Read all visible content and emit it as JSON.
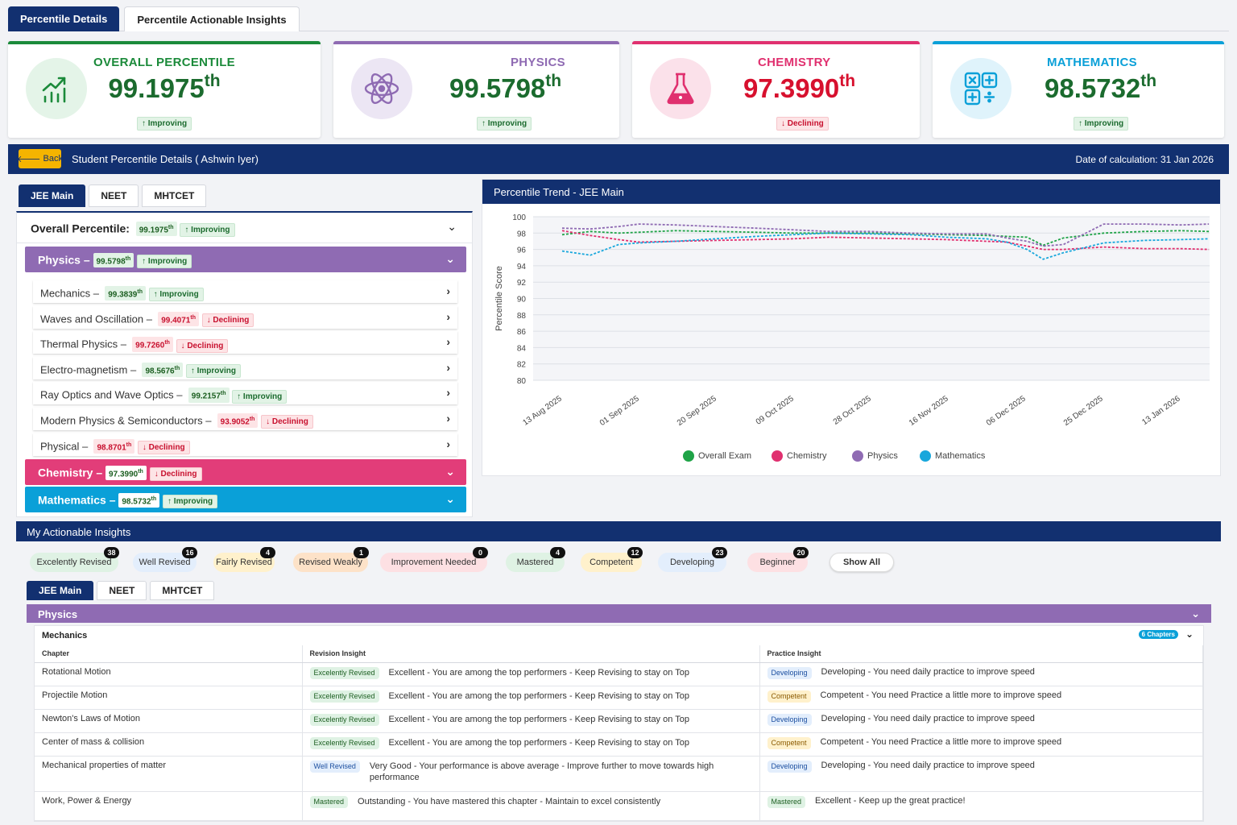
{
  "top_tabs": [
    "Percentile Details",
    "Percentile Actionable Insights"
  ],
  "cards": [
    {
      "title": "OVERALL PERCENTILE",
      "value": "99.1975",
      "suffix": "th",
      "trend": "↑ Improving",
      "color": "#1b8a3a",
      "icon": "trend-up-chart-icon"
    },
    {
      "title": "PHYSICS",
      "value": "99.5798",
      "suffix": "th",
      "trend": "↑ Improving",
      "color": "#8f6bb3",
      "icon": "atom-icon"
    },
    {
      "title": "CHEMISTRY",
      "value": "97.3990",
      "suffix": "th",
      "trend": "↓ Declining",
      "color": "#e0306f",
      "icon": "flask-icon"
    },
    {
      "title": "MATHEMATICS",
      "value": "98.5732",
      "suffix": "th",
      "trend": "↑ Improving",
      "color": "#0aa0d8",
      "icon": "calculator-icon"
    }
  ],
  "nav": {
    "back_label": "Back",
    "title": "Student Percentile Details  ( Ashwin Iyer)",
    "date": "Date of calculation: 31 Jan 2026"
  },
  "exam_tabs": [
    "JEE Main",
    "NEET",
    "MHTCET"
  ],
  "overall": {
    "label": "Overall Percentile:",
    "value": "99.1975",
    "suffix": "th",
    "trend": "↑ Improving"
  },
  "physics": {
    "label": "Physics –",
    "value": "99.5798",
    "suffix": "th",
    "trend": "↑ Improving"
  },
  "chapters": [
    {
      "name": "Mechanics –",
      "value": "99.3839",
      "suffix": "th",
      "trend": "↑ Improving",
      "dir": "up"
    },
    {
      "name": "Waves and Oscillation –",
      "value": "99.4071",
      "suffix": "th",
      "trend": "↓ Declining",
      "dir": "dn"
    },
    {
      "name": "Thermal Physics –",
      "value": "99.7260",
      "suffix": "th",
      "trend": "↓ Declining",
      "dir": "dn"
    },
    {
      "name": "Electro-magnetism –",
      "value": "98.5676",
      "suffix": "th",
      "trend": "↑ Improving",
      "dir": "up"
    },
    {
      "name": "Ray Optics and Wave Optics –",
      "value": "99.2157",
      "suffix": "th",
      "trend": "↑ Improving",
      "dir": "up"
    },
    {
      "name": "Modern Physics & Semiconductors –",
      "value": "93.9052",
      "suffix": "th",
      "trend": "↓ Declining",
      "dir": "dn"
    },
    {
      "name": "Physical –",
      "value": "98.8701",
      "suffix": "th",
      "trend": "↓ Declining",
      "dir": "dn"
    }
  ],
  "chemistry": {
    "label": "Chemistry –",
    "value": "97.3990",
    "suffix": "th",
    "trend": "↓ Declining"
  },
  "mathematics": {
    "label": "Mathematics –",
    "value": "98.5732",
    "suffix": "th",
    "trend": "↑ Improving"
  },
  "chart_title": "Percentile Trend - JEE Main",
  "chart_data": {
    "type": "line",
    "title": "Percentile Trend - JEE Main",
    "ylabel": "Percentile Score",
    "xlabel": "",
    "ylim": [
      80,
      100
    ],
    "yticks": [
      80,
      82,
      84,
      86,
      88,
      90,
      92,
      94,
      96,
      98,
      100
    ],
    "x_tick_labels": [
      "13 Aug 2025",
      "01 Sep 2025",
      "20 Sep 2025",
      "09 Oct 2025",
      "28 Oct 2025",
      "16 Nov 2025",
      "06 Dec 2025",
      "25 Dec 2025",
      "13 Jan 2026"
    ],
    "x": [
      "13 Aug 2025",
      "20 Aug 2025",
      "27 Aug 2025",
      "01 Sep 2025",
      "10 Sep 2025",
      "20 Sep 2025",
      "30 Sep 2025",
      "09 Oct 2025",
      "18 Oct 2025",
      "28 Oct 2025",
      "07 Nov 2025",
      "16 Nov 2025",
      "26 Nov 2025",
      "01 Dec 2025",
      "06 Dec 2025",
      "10 Dec 2025",
      "15 Dec 2025",
      "25 Dec 2025",
      "04 Jan 2026",
      "13 Jan 2026",
      "20 Jan 2026"
    ],
    "grid": true,
    "legend": "bottom",
    "series": [
      {
        "name": "Overall Exam",
        "color": "#1fa347",
        "values": [
          97.8,
          98.2,
          98.0,
          98.1,
          98.3,
          98.2,
          98.1,
          98.0,
          98.0,
          98.0,
          97.9,
          97.8,
          97.7,
          97.6,
          97.5,
          96.5,
          97.4,
          98.0,
          98.2,
          98.3,
          98.2
        ]
      },
      {
        "name": "Chemistry",
        "color": "#e0306f",
        "values": [
          98.3,
          97.7,
          97.2,
          96.9,
          97.0,
          97.1,
          97.2,
          97.3,
          97.5,
          97.4,
          97.3,
          97.2,
          97.0,
          96.9,
          96.4,
          96.0,
          96.0,
          96.3,
          96.1,
          96.1,
          96.0
        ]
      },
      {
        "name": "Physics",
        "color": "#8f6bb3",
        "values": [
          98.6,
          98.5,
          98.8,
          99.1,
          99.0,
          98.8,
          98.6,
          98.4,
          98.2,
          98.2,
          98.0,
          97.9,
          97.9,
          97.4,
          97.0,
          96.4,
          96.6,
          99.1,
          99.1,
          99.0,
          99.1
        ]
      },
      {
        "name": "Mathematics",
        "color": "#18a7dc",
        "values": [
          95.8,
          95.3,
          96.6,
          96.8,
          97.0,
          97.3,
          97.6,
          97.8,
          98.0,
          97.9,
          97.8,
          97.5,
          97.3,
          96.9,
          96.0,
          94.8,
          95.6,
          96.8,
          97.1,
          97.2,
          97.3
        ]
      }
    ]
  },
  "insights": {
    "title": "My Actionable Insights",
    "pills": [
      {
        "label": "Excelently Revised",
        "count": "38",
        "bg": "#dff2e4"
      },
      {
        "label": "Well Revised",
        "count": "16",
        "bg": "#e3eefc"
      },
      {
        "label": "Fairly Revised",
        "count": "4",
        "bg": "#fff1cc"
      },
      {
        "label": "Revised Weakly",
        "count": "1",
        "bg": "#fde2c8"
      },
      {
        "label": "Improvement Needed",
        "count": "0",
        "bg": "#fde0e3"
      },
      {
        "label": "Mastered",
        "count": "4",
        "bg": "#dff2e4"
      },
      {
        "label": "Competent",
        "count": "12",
        "bg": "#fff1cc"
      },
      {
        "label": "Developing",
        "count": "23",
        "bg": "#e3eefc"
      },
      {
        "label": "Beginner",
        "count": "20",
        "bg": "#fde0e3"
      },
      {
        "label": "Show All",
        "count": "",
        "bg": "#ffffff"
      }
    ],
    "subject_bar": "Physics",
    "group": "Mechanics",
    "chapters_badge": "6 Chapters",
    "columns": [
      "Chapter",
      "Revision Insight",
      "Practice Insight"
    ],
    "rows": [
      {
        "chapter": "Rotational Motion",
        "rev_tag": "Excelently Revised",
        "rev_cls": "ex",
        "rev_text": "Excellent - You are among the top performers - Keep Revising to stay on Top",
        "prac_tag": "Developing",
        "prac_cls": "dv",
        "prac_text": "Developing - You need daily practice to improve speed"
      },
      {
        "chapter": "Projectile Motion",
        "rev_tag": "Excelently Revised",
        "rev_cls": "ex",
        "rev_text": "Excellent - You are among the top performers - Keep Revising to stay on Top",
        "prac_tag": "Competent",
        "prac_cls": "co",
        "prac_text": "Competent - You need Practice a little more to improve speed"
      },
      {
        "chapter": "Newton's Laws of Motion",
        "rev_tag": "Excelently Revised",
        "rev_cls": "ex",
        "rev_text": "Excellent - You are among the top performers - Keep Revising to stay on Top",
        "prac_tag": "Developing",
        "prac_cls": "dv",
        "prac_text": "Developing - You need daily practice to improve speed"
      },
      {
        "chapter": "Center of mass & collision",
        "rev_tag": "Excelently Revised",
        "rev_cls": "ex",
        "rev_text": "Excellent - You are among the top performers - Keep Revising to stay on Top",
        "prac_tag": "Competent",
        "prac_cls": "co",
        "prac_text": "Competent - You need Practice a little more to improve speed"
      },
      {
        "chapter": "Mechanical properties of matter",
        "rev_tag": "Well Revised",
        "rev_cls": "wr",
        "rev_text": "Very Good - Your performance is above average - Improve further to move towards high performance",
        "prac_tag": "Developing",
        "prac_cls": "dv",
        "prac_text": "Developing - You need daily practice to improve speed"
      },
      {
        "chapter": "Work, Power & Energy",
        "rev_tag": "Mastered",
        "rev_cls": "ma",
        "rev_text": "Outstanding - You have mastered this chapter - Maintain to excel consistently",
        "prac_tag": "Mastered",
        "prac_cls": "ma",
        "prac_text": "Excellent - Keep up the great practice!"
      }
    ]
  }
}
